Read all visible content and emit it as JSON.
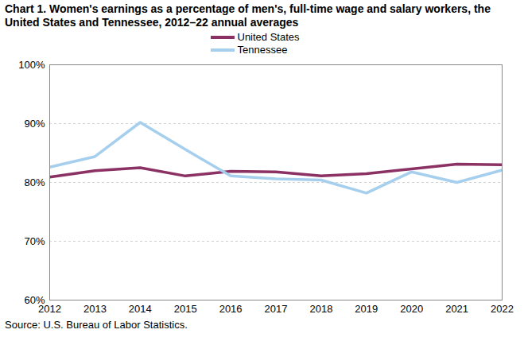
{
  "chart_data": {
    "type": "line",
    "title": "Chart 1. Women's earnings as a percentage of men's, full-time wage and salary workers, the United States and Tennessee, 2012–22 annual averages",
    "caption": "Source:  U.S. Bureau of Labor Statistics.",
    "x": [
      2012,
      2013,
      2014,
      2015,
      2016,
      2017,
      2018,
      2019,
      2020,
      2021,
      2022
    ],
    "series": [
      {
        "name": "United States",
        "color": "#8b3163",
        "values": [
          80.9,
          82.0,
          82.5,
          81.1,
          81.9,
          81.8,
          81.1,
          81.5,
          82.3,
          83.1,
          83.0
        ]
      },
      {
        "name": "Tennessee",
        "color": "#a6cfee",
        "values": [
          82.6,
          84.4,
          90.2,
          85.6,
          81.1,
          80.6,
          80.4,
          78.2,
          81.8,
          80.0,
          82.1
        ]
      }
    ],
    "xlim": [
      2012,
      2022
    ],
    "xticks": [
      2012,
      2013,
      2014,
      2015,
      2016,
      2017,
      2018,
      2019,
      2020,
      2021,
      2022
    ],
    "ylim": [
      60,
      100
    ],
    "yticks": [
      {
        "value": 60,
        "label": "60%"
      },
      {
        "value": 70,
        "label": "70%"
      },
      {
        "value": 80,
        "label": "80%"
      },
      {
        "value": 90,
        "label": "90%"
      },
      {
        "value": 100,
        "label": "100%"
      }
    ],
    "grid": true,
    "legend": "top"
  }
}
